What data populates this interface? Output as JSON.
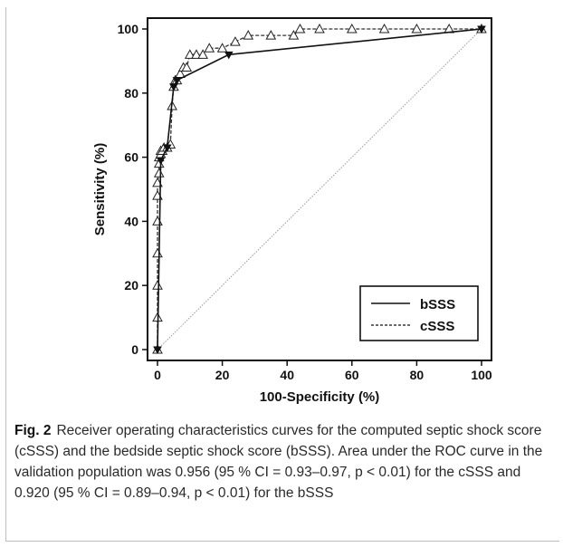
{
  "chart_data": {
    "type": "line",
    "xlabel": "100-Specificity (%)",
    "ylabel": "Sensitivity (%)",
    "xlim": [
      0,
      100
    ],
    "ylim": [
      0,
      100
    ],
    "x_ticks": [
      "0",
      "20",
      "40",
      "60",
      "80",
      "100"
    ],
    "y_ticks": [
      "0",
      "20",
      "40",
      "60",
      "80",
      "100"
    ],
    "legend_position": "bottom-right",
    "series": [
      {
        "name": "bSSS",
        "line_style": "solid",
        "marker": "filled-triangle-down",
        "x": [
          0,
          1,
          3,
          5,
          6,
          22,
          100
        ],
        "y": [
          0,
          59,
          63,
          82,
          84,
          92,
          100
        ]
      },
      {
        "name": "cSSS",
        "line_style": "dashed",
        "marker": "open-triangle",
        "x": [
          0,
          0,
          0,
          0,
          0,
          0,
          0,
          0.5,
          0.5,
          0.5,
          1,
          1,
          1.5,
          2,
          3,
          4,
          4.5,
          5,
          5.5,
          6,
          7,
          8,
          9,
          10,
          12,
          14,
          16,
          20,
          24,
          28,
          35,
          42,
          44,
          50,
          60,
          70,
          80,
          90,
          100
        ],
        "y": [
          0,
          10,
          20,
          30,
          40,
          48,
          52,
          55,
          58,
          60,
          61,
          62,
          62,
          63,
          63,
          64,
          76,
          82,
          84,
          84,
          86,
          88,
          88,
          92,
          92,
          92,
          94,
          94,
          96,
          98,
          98,
          98,
          100,
          100,
          100,
          100,
          100,
          100,
          100
        ]
      },
      {
        "name": "",
        "line_style": "dotted-reference",
        "marker": "none",
        "x": [
          0,
          100
        ],
        "y": [
          0,
          100
        ]
      }
    ]
  },
  "caption": {
    "label": "Fig. 2",
    "text": "Receiver operating characteristics curves for the computed septic shock score (cSSS) and the bedside septic shock score (bSSS). Area under the ROC curve in the validation population was 0.956 (95 % CI = 0.93–0.97, p < 0.01) for the cSSS and 0.920 (95 % CI = 0.89–0.94, p < 0.01) for the bSSS"
  },
  "colors": {
    "axis": "#111111",
    "diagonal": "#9a9a9a",
    "caption_text": "#2a2a2a"
  }
}
